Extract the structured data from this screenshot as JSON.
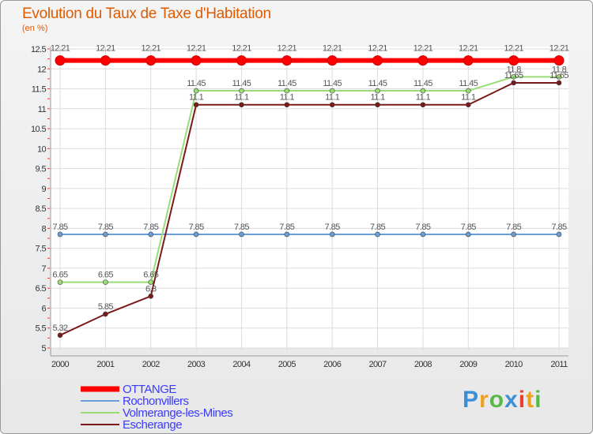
{
  "chart_data": {
    "type": "line",
    "title": "Evolution du Taux de Taxe d'Habitation",
    "unit_label": "(en %)",
    "xlabel": "",
    "ylabel": "(en %)",
    "categories": [
      "2000",
      "2001",
      "2002",
      "2003",
      "2004",
      "2005",
      "2006",
      "2007",
      "2008",
      "2009",
      "2010",
      "2011"
    ],
    "ylim": [
      5,
      12.5
    ],
    "yticks": [
      "5",
      "5.5",
      "6",
      "6.5",
      "7",
      "7.5",
      "8",
      "8.5",
      "9",
      "9.5",
      "10",
      "10.5",
      "11",
      "11.5",
      "12",
      "12.5"
    ],
    "grid": true,
    "legend_position": "bottom-left",
    "series": [
      {
        "name": "OTTANGE",
        "color": "#ff0000",
        "start_index": 0,
        "label_group": "top",
        "values": [
          12.21,
          12.21,
          12.21,
          12.21,
          12.21,
          12.21,
          12.21,
          12.21,
          12.21,
          12.21,
          12.21,
          12.21
        ],
        "labels": [
          "12.21",
          "12.21",
          "12.21",
          "12.21",
          "12.21",
          "12.21",
          "12.21",
          "12.21",
          "12.21",
          "12.21",
          "12.21",
          "12.21"
        ]
      },
      {
        "name": "Rochonvillers",
        "color": "#6a9ed8",
        "start_index": 0,
        "label_group": "above",
        "values": [
          7.85,
          7.85,
          7.85,
          7.85,
          7.85,
          7.85,
          7.85,
          7.85,
          7.85,
          7.85,
          7.85,
          7.85
        ],
        "labels": [
          "7.85",
          "7.85",
          "7.85",
          "7.85",
          "7.85",
          "7.85",
          "7.85",
          "7.85",
          "7.85",
          "7.85",
          "7.85",
          "7.85"
        ]
      },
      {
        "name": "Volmerange-les-Mines",
        "color": "#99dd77",
        "start_index": 0,
        "label_group": "above",
        "values": [
          6.65,
          6.65,
          6.65,
          11.45,
          11.45,
          11.45,
          11.45,
          11.45,
          11.45,
          11.45,
          11.8,
          11.8
        ],
        "labels": [
          "6.65",
          "6.65",
          "6.65",
          "11.45",
          "11.45",
          "11.45",
          "11.45",
          "11.45",
          "11.45",
          "11.45",
          "11.8",
          "11.8"
        ]
      },
      {
        "name": "Escherange",
        "color": "#7a1a1a",
        "start_index": 0,
        "label_group": "above",
        "values": [
          5.32,
          5.85,
          6.3,
          11.1,
          11.1,
          11.1,
          11.1,
          11.1,
          11.1,
          11.1,
          11.65,
          11.65
        ],
        "labels": [
          "5.32",
          "5.85",
          "6.3",
          "11.1",
          "11.1",
          "11.1",
          "11.1",
          "11.1",
          "11.1",
          "11.1",
          "11.65",
          "11.65"
        ]
      }
    ]
  },
  "brand": {
    "text": "Proxiti",
    "letters": [
      "P",
      "r",
      "o",
      "x",
      "i",
      "t",
      "i"
    ],
    "colors": [
      "#3a8fd8",
      "#f0a020",
      "#58b848",
      "#3a8fd8",
      "#e8402a",
      "#f0a020",
      "#58b848"
    ]
  }
}
